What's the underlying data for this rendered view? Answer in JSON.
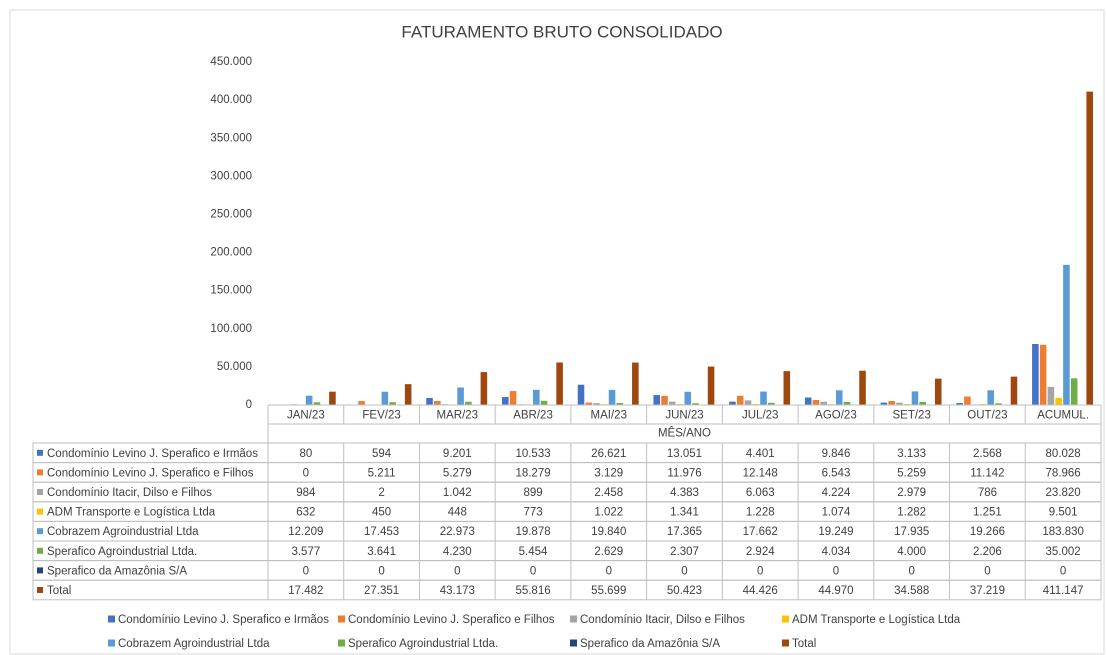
{
  "chart_data": {
    "type": "bar",
    "title": "FATURAMENTO BRUTO CONSOLIDADO",
    "x_label": "MÊS/ANO",
    "categories": [
      "JAN/23",
      "FEV/23",
      "MAR/23",
      "ABR/23",
      "MAI/23",
      "JUN/23",
      "JUL/23",
      "AGO/23",
      "SET/23",
      "OUT/23",
      "ACUMUL."
    ],
    "ylim": [
      0,
      450000
    ],
    "yticks": [
      0,
      {
        "value": 50000,
        "label": "50.000"
      },
      {
        "value": 100000,
        "label": "100.000"
      },
      {
        "value": 150000,
        "label": "150.000"
      },
      {
        "value": 200000,
        "label": "200.000"
      },
      {
        "value": 250000,
        "label": "250.000"
      },
      {
        "value": 300000,
        "label": "300.000"
      },
      {
        "value": 350000,
        "label": "350.000"
      },
      {
        "value": 400000,
        "label": "400.000"
      },
      {
        "value": 450000,
        "label": "450.000"
      }
    ],
    "grid": false,
    "legend": "bottom",
    "series": [
      {
        "name": "Condomínio Levino J. Sperafico e Irmãos",
        "color": "#4472c4",
        "values": [
          80,
          594,
          9201,
          10533,
          26621,
          13051,
          4401,
          9846,
          3133,
          2568,
          80028
        ],
        "value_labels": [
          "80",
          "594",
          "9.201",
          "10.533",
          "26.621",
          "13.051",
          "4.401",
          "9.846",
          "3.133",
          "2.568",
          "80.028"
        ]
      },
      {
        "name": "Condomínio Levino J. Sperafico e Filhos",
        "color": "#ed7d31",
        "values": [
          0,
          5211,
          5279,
          18279,
          3129,
          11976,
          12148,
          6543,
          5259,
          11142,
          78966
        ],
        "value_labels": [
          "0",
          "5.211",
          "5.279",
          "18.279",
          "3.129",
          "11.976",
          "12.148",
          "6.543",
          "5.259",
          "11.142",
          "78.966"
        ]
      },
      {
        "name": "Condomínio Itacir, Dilso e Filhos",
        "color": "#a5a5a5",
        "values": [
          984,
          2,
          1042,
          899,
          2458,
          4383,
          6063,
          4224,
          2979,
          786,
          23820
        ],
        "value_labels": [
          "984",
          "2",
          "1.042",
          "899",
          "2.458",
          "4.383",
          "6.063",
          "4.224",
          "2.979",
          "786",
          "23.820"
        ]
      },
      {
        "name": "ADM Transporte e Logística Ltda",
        "color": "#ffc000",
        "values": [
          632,
          450,
          448,
          773,
          1022,
          1341,
          1228,
          1074,
          1282,
          1251,
          9501
        ],
        "value_labels": [
          "632",
          "450",
          "448",
          "773",
          "1.022",
          "1.341",
          "1.228",
          "1.074",
          "1.282",
          "1.251",
          "9.501"
        ]
      },
      {
        "name": "Cobrazem Agroindustrial Ltda",
        "color": "#5b9bd5",
        "values": [
          12209,
          17453,
          22973,
          19878,
          19840,
          17365,
          17662,
          19249,
          17935,
          19266,
          183830
        ],
        "value_labels": [
          "12.209",
          "17.453",
          "22.973",
          "19.878",
          "19.840",
          "17.365",
          "17.662",
          "19.249",
          "17.935",
          "19.266",
          "183.830"
        ]
      },
      {
        "name": "Sperafico Agroindustrial Ltda.",
        "color": "#70ad47",
        "values": [
          3577,
          3641,
          4230,
          5454,
          2629,
          2307,
          2924,
          4034,
          4000,
          2206,
          35002
        ],
        "value_labels": [
          "3.577",
          "3.641",
          "4.230",
          "5.454",
          "2.629",
          "2.307",
          "2.924",
          "4.034",
          "4.000",
          "2.206",
          "35.002"
        ]
      },
      {
        "name": "Sperafico da Amazônia S/A",
        "color": "#264478",
        "values": [
          0,
          0,
          0,
          0,
          0,
          0,
          0,
          0,
          0,
          0,
          0
        ],
        "value_labels": [
          "0",
          "0",
          "0",
          "0",
          "0",
          "0",
          "0",
          "0",
          "0",
          "0",
          "0"
        ]
      },
      {
        "name": "Total",
        "color": "#9e480e",
        "values": [
          17482,
          27351,
          43173,
          55816,
          55699,
          50423,
          44426,
          44970,
          34588,
          37219,
          411147
        ],
        "value_labels": [
          "17.482",
          "27.351",
          "43.173",
          "55.816",
          "55.699",
          "50.423",
          "44.426",
          "44.970",
          "34.588",
          "37.219",
          "411.147"
        ]
      }
    ]
  }
}
